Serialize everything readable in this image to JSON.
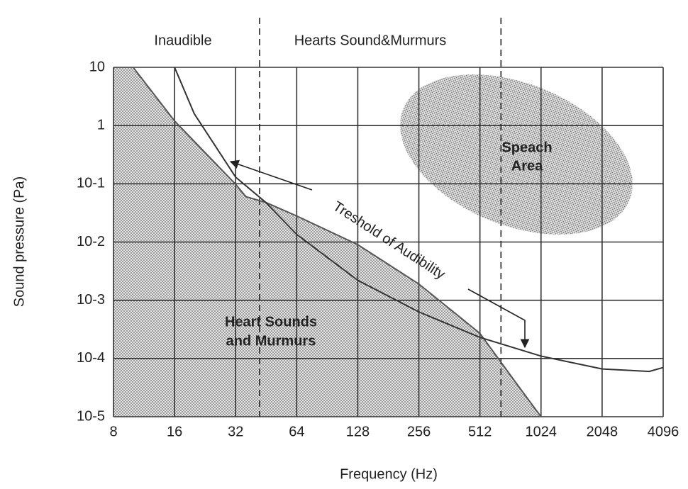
{
  "chart_data": {
    "type": "line",
    "xlabel": "Frequency (Hz)",
    "ylabel": "Sound pressure (Pa)",
    "xscale": "log",
    "yscale": "log",
    "grid": true,
    "xlim": [
      8,
      4096
    ],
    "xticks": [
      8,
      16,
      32,
      64,
      128,
      256,
      512,
      1024,
      2048,
      4096
    ],
    "ylim": [
      1e-05,
      10
    ],
    "yticks": [
      {
        "value": 1e-05,
        "label": "10-5"
      },
      {
        "value": 0.0001,
        "label": "10-4"
      },
      {
        "value": 0.001,
        "label": "10-3"
      },
      {
        "value": 0.01,
        "label": "10-2"
      },
      {
        "value": 0.1,
        "label": "10-1"
      },
      1,
      10
    ],
    "series": [
      {
        "fill": "area",
        "color": "#555555",
        "x": [
          10,
          16,
          32,
          36,
          45,
          64,
          128,
          256,
          512,
          800,
          1024
        ],
        "values": [
          10,
          1.2,
          0.098,
          0.06,
          0.048,
          0.028,
          0.009,
          0.0019,
          0.00027,
          3.2e-05,
          1e-05
        ]
      },
      {
        "color": "#333333",
        "x": [
          16,
          20,
          32,
          45,
          64,
          128,
          256,
          512,
          1024,
          2048,
          3500,
          4096
        ],
        "values": [
          10,
          1.6,
          0.13,
          0.048,
          0.0135,
          0.0022,
          0.00063,
          0.00023,
          0.00011,
          6.6e-05,
          6e-05,
          7e-05
        ]
      }
    ],
    "vlines": [
      42,
      650
    ],
    "regions": [
      "Inaudible",
      "Hearts Sound&Murmurs"
    ],
    "annotations": {
      "heart": [
        "Heart Sounds",
        "and Murmurs"
      ],
      "speech": [
        "Speach",
        "Area"
      ],
      "threshold": "Treshold of Audibility"
    }
  }
}
